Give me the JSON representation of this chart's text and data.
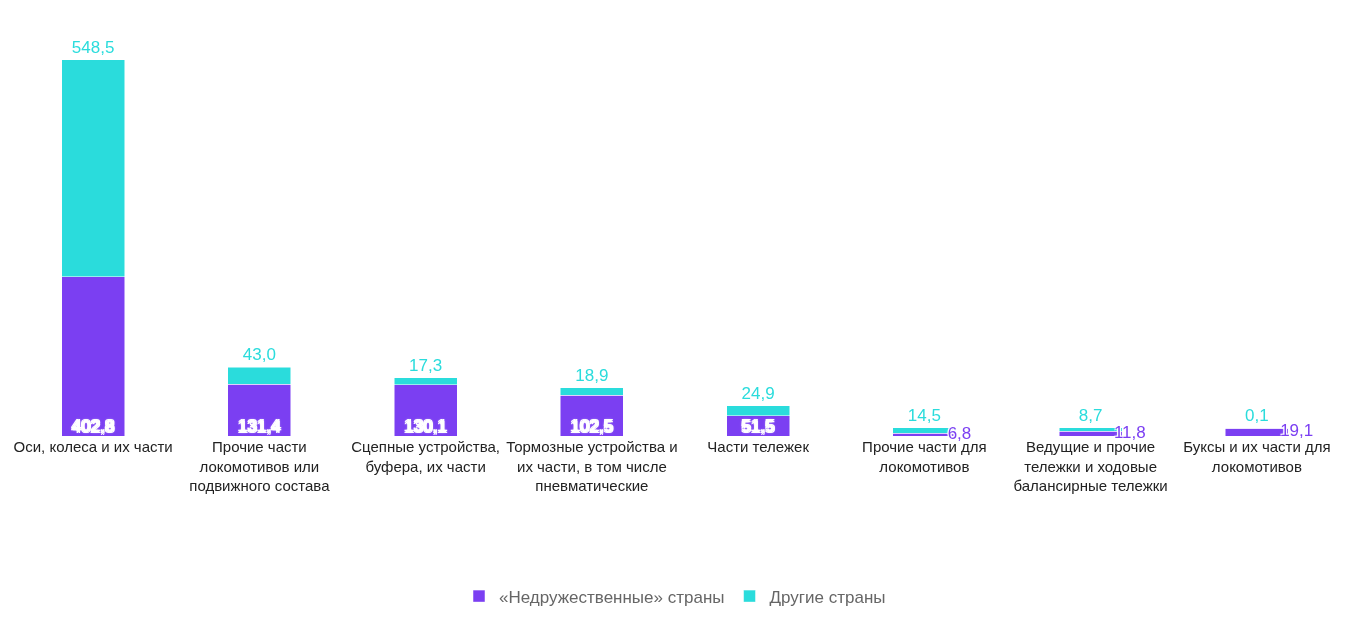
{
  "chart_data": {
    "type": "bar",
    "stacked": true,
    "legend": "bottom",
    "categories": [
      "Оси, колеса и их части",
      "Прочие части локомотивов или подвижного состава",
      "Сцепные устройства, буфера, их части",
      "Тормозные устройства и их части, в том числе пневматические",
      "Части тележек",
      "Прочие части для локомотивов",
      "Ведущие и прочие тележки и ходовые балансирные тележки",
      "Буксы и их части для локомотивов"
    ],
    "series": [
      {
        "name": "«Недружественные» страны",
        "color": "#7b3ff2",
        "values": [
          402.8,
          131.4,
          130.1,
          102.5,
          51.5,
          6.8,
          11.8,
          19.1
        ],
        "value_labels": [
          "402,8",
          "131,4",
          "130,1",
          "102,5",
          "51,5",
          "6,8",
          "11,8",
          "19,1"
        ]
      },
      {
        "name": "Другие страны",
        "color": "#2adcdc",
        "values": [
          548.5,
          43.0,
          17.3,
          18.9,
          24.9,
          14.5,
          8.7,
          0.1
        ],
        "value_labels": [
          "548,5",
          "43,0",
          "17,3",
          "18,9",
          "24,9",
          "14,5",
          "8,7",
          "0,1"
        ]
      }
    ]
  }
}
